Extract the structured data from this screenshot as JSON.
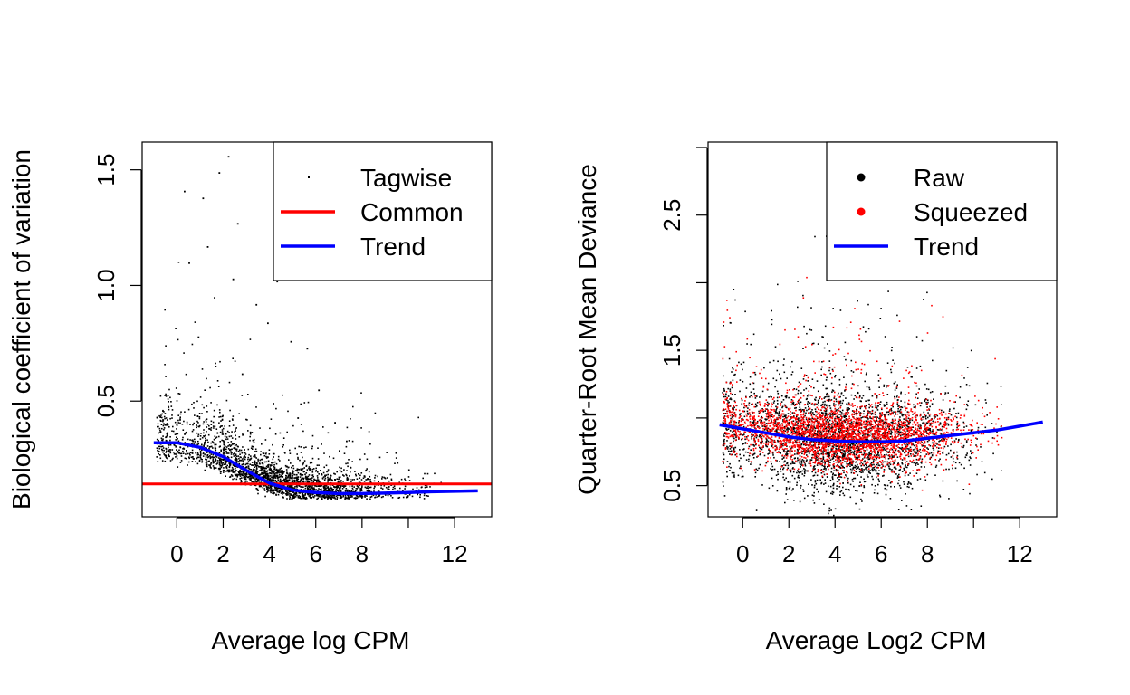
{
  "chart_data": [
    {
      "type": "scatter",
      "xlabel": "Average log CPM",
      "ylabel": "Biological coefficient of variation",
      "xlim": [
        -1.5,
        13.6
      ],
      "ylim": [
        0.0,
        1.62
      ],
      "x_ticks": [
        0,
        2,
        4,
        6,
        8,
        10,
        12
      ],
      "x_tick_labels": [
        "0",
        "2",
        "4",
        "6",
        "8",
        "",
        "12"
      ],
      "y_ticks": [
        0.5,
        1.0,
        1.5
      ],
      "y_tick_labels": [
        "0.5",
        "1.0",
        "1.5"
      ],
      "grid": false,
      "legend_position": "top-right",
      "legend": [
        {
          "label": "Tagwise",
          "kind": "point",
          "color": "#000000"
        },
        {
          "label": "Common",
          "kind": "line",
          "color": "#ff0000"
        },
        {
          "label": "Trend",
          "kind": "line",
          "color": "#0000ff"
        }
      ],
      "common_dispersion_bcv": 0.142,
      "trend": {
        "x": [
          -1.0,
          0.0,
          1.0,
          2.0,
          3.0,
          4.0,
          5.0,
          6.0,
          7.0,
          8.0,
          9.0,
          10.0,
          11.0,
          12.0,
          13.0
        ],
        "y": [
          0.32,
          0.32,
          0.3,
          0.26,
          0.2,
          0.145,
          0.115,
          0.105,
          0.1,
          0.1,
          0.102,
          0.105,
          0.108,
          0.11,
          0.112
        ]
      },
      "tagwise_outliers": {
        "x": [
          0.3,
          1.1,
          2.2,
          2.6,
          1.8,
          0.5,
          1.3,
          2.4,
          3.4,
          4.3,
          4.9,
          5.6,
          6.1,
          0.9,
          1.6,
          2.8,
          3.9,
          5.2,
          6.8,
          7.3
        ],
        "y": [
          1.41,
          1.38,
          1.56,
          1.27,
          1.49,
          1.1,
          1.17,
          1.03,
          0.92,
          1.02,
          0.76,
          0.73,
          0.55,
          0.78,
          0.95,
          0.62,
          0.84,
          0.43,
          0.41,
          0.33
        ]
      }
    },
    {
      "type": "scatter",
      "xlabel": "Average Log2 CPM",
      "ylabel": "Quarter-Root Mean Deviance",
      "xlim": [
        -1.5,
        13.6
      ],
      "ylim": [
        0.27,
        3.04
      ],
      "x_ticks": [
        0,
        2,
        4,
        6,
        8,
        10,
        12
      ],
      "x_tick_labels": [
        "0",
        "2",
        "4",
        "6",
        "8",
        "",
        "12"
      ],
      "y_ticks": [
        0.5,
        1.0,
        1.5,
        2.0,
        2.5,
        3.0
      ],
      "y_tick_labels": [
        "0.5",
        "",
        "1.5",
        "",
        "2.5",
        ""
      ],
      "grid": false,
      "legend_position": "top-right",
      "legend": [
        {
          "label": "Raw",
          "kind": "point",
          "color": "#000000"
        },
        {
          "label": "Squeezed",
          "kind": "point",
          "color": "#ff0000"
        },
        {
          "label": "Trend",
          "kind": "line",
          "color": "#0000ff"
        }
      ],
      "trend": {
        "x": [
          -1.0,
          0.0,
          1.0,
          2.0,
          3.0,
          4.0,
          5.0,
          6.0,
          7.0,
          8.0,
          9.0,
          10.0,
          11.0,
          12.0,
          13.0
        ],
        "y": [
          0.95,
          0.92,
          0.89,
          0.86,
          0.84,
          0.83,
          0.825,
          0.825,
          0.83,
          0.85,
          0.87,
          0.89,
          0.91,
          0.94,
          0.97
        ]
      }
    }
  ]
}
